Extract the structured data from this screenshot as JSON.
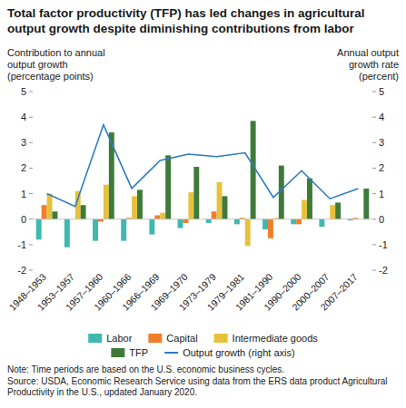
{
  "chart_data": {
    "type": "bar",
    "title": "Total factor productivity (TFP) has led changes in agricultural output growth despite diminishing contributions from labor",
    "y_label": "Contribution to annual output growth (percentage points)",
    "y2_label": "Annual output growth rate (percent)",
    "categories": [
      "1948–1953",
      "1953–1957",
      "1957–1960",
      "1960–1966",
      "1966–1969",
      "1969–1970",
      "1973–1979",
      "1979–1981",
      "1981–1990",
      "1990–2000",
      "2000–2007",
      "2007–2017"
    ],
    "series": [
      {
        "name": "Labor",
        "color": "#3fb8b0",
        "values": [
          -0.8,
          -1.1,
          -0.85,
          -0.85,
          -0.6,
          -0.35,
          -0.15,
          -0.2,
          -0.4,
          -0.2,
          -0.3,
          -0.05
        ]
      },
      {
        "name": "Capital",
        "color": "#f07f2a",
        "values": [
          0.55,
          0.0,
          -0.1,
          0.05,
          0.15,
          -0.15,
          0.3,
          0.05,
          -0.75,
          -0.2,
          0.0,
          0.05
        ]
      },
      {
        "name": "Intermediate goods",
        "color": "#e6c23c",
        "values": [
          1.0,
          1.1,
          1.35,
          0.9,
          0.25,
          1.05,
          1.45,
          -1.05,
          0.05,
          0.75,
          0.55,
          0.0
        ]
      },
      {
        "name": "TFP",
        "color": "#3e7b3a",
        "values": [
          0.3,
          0.55,
          3.4,
          1.15,
          2.5,
          2.05,
          0.9,
          3.85,
          2.1,
          1.6,
          0.65,
          1.2
        ]
      },
      {
        "name": "Output growth (right axis)",
        "color": "#2c7bbf",
        "type": "line",
        "axis": "y2",
        "values": [
          1.0,
          0.5,
          3.7,
          1.2,
          2.3,
          2.55,
          2.45,
          2.6,
          0.85,
          1.9,
          0.8,
          1.2
        ]
      }
    ],
    "ylim": [
      -2,
      5
    ],
    "yticks": [
      -2,
      -1,
      0,
      1,
      2,
      3,
      4,
      5
    ],
    "y2lim": [
      -2,
      5
    ],
    "y2ticks": [
      -2,
      -1,
      0,
      1,
      2,
      3,
      4,
      5
    ],
    "grid": false,
    "legend": "bottom",
    "annotations": [
      "Note: Time periods are based on the U.S. economic business cycles.",
      "Source: USDA, Economic Research Service using data from the ERS data product Agricultural Productivity in the U.S., updated January 2020."
    ]
  }
}
